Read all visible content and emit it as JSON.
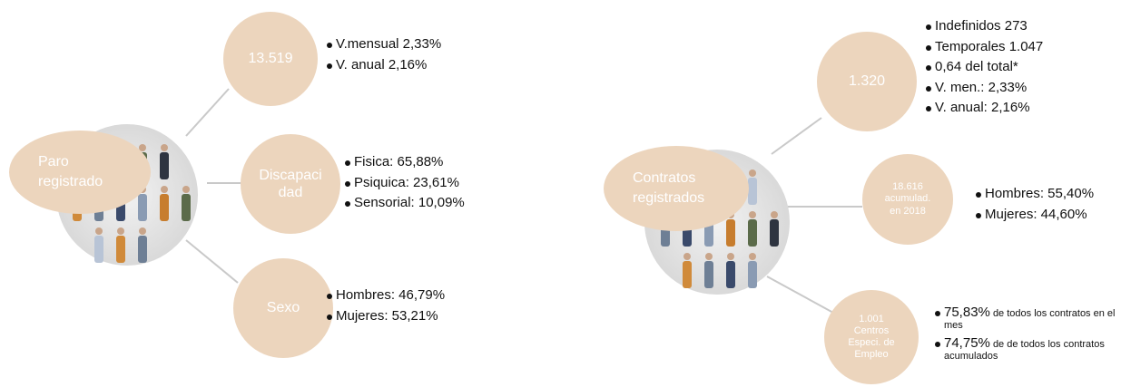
{
  "groups": [
    {
      "title": [
        "Paro",
        "registrado"
      ],
      "branches": [
        {
          "label": [
            "13.519"
          ],
          "items": [
            "V.mensual 2,33%",
            "V. anual 2,16%"
          ]
        },
        {
          "label": [
            "Discapaci",
            "dad"
          ],
          "items": [
            "Fisica: 65,88%",
            "Psiquica: 23,61%",
            "Sensorial: 10,09%"
          ]
        },
        {
          "label": [
            "Sexo"
          ],
          "items": [
            "Hombres: 46,79%",
            "Mujeres: 53,21%"
          ]
        }
      ]
    },
    {
      "title": [
        "Contratos",
        "registrados"
      ],
      "branches": [
        {
          "label": [
            "1.320"
          ],
          "items": [
            "Indefinidos 273",
            "Temporales 1.047",
            "0,64 del total*",
            "V. men.: 2,33%",
            "V. anual: 2,16%"
          ]
        },
        {
          "label": [
            "18.616",
            "acumulad.",
            "en 2018"
          ],
          "items": [
            "Hombres: 55,40%",
            "Mujeres:  44,60%"
          ]
        },
        {
          "label": [
            "1.001",
            "Centros",
            "Especi. de",
            "Empleo"
          ],
          "items": [
            {
              "strong": "75,83%",
              "text": "de todos los contratos en el mes"
            },
            {
              "strong": "74,75%",
              "text": "de de todos los contratos acumulados"
            }
          ]
        }
      ]
    }
  ]
}
